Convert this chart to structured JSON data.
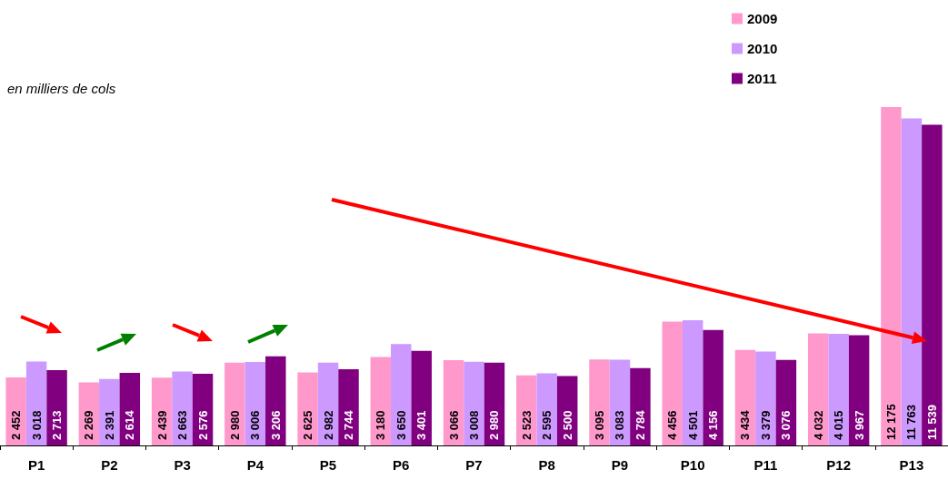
{
  "chart_data": {
    "type": "bar",
    "categories": [
      "P1",
      "P2",
      "P3",
      "P4",
      "P5",
      "P6",
      "P7",
      "P8",
      "P9",
      "P10",
      "P11",
      "P12",
      "P13"
    ],
    "series": [
      {
        "name": "2009",
        "color": "#ff99cc",
        "values": [
          2452,
          2269,
          2439,
          2980,
          2625,
          3180,
          3066,
          2523,
          3095,
          4456,
          3434,
          4032,
          12175
        ]
      },
      {
        "name": "2010",
        "color": "#cc99ff",
        "values": [
          3018,
          2391,
          2663,
          3006,
          2982,
          3650,
          3008,
          2595,
          3083,
          4501,
          3379,
          4015,
          11763
        ]
      },
      {
        "name": "2011",
        "color": "#800080",
        "values": [
          2713,
          2614,
          2576,
          3206,
          2744,
          3401,
          2980,
          2500,
          2784,
          4156,
          3076,
          3967,
          11539
        ]
      }
    ],
    "annotations": [
      "en milliers de cols"
    ],
    "data_labels": true,
    "legend": "top right",
    "grid": false,
    "tick_labels": "x"
  }
}
